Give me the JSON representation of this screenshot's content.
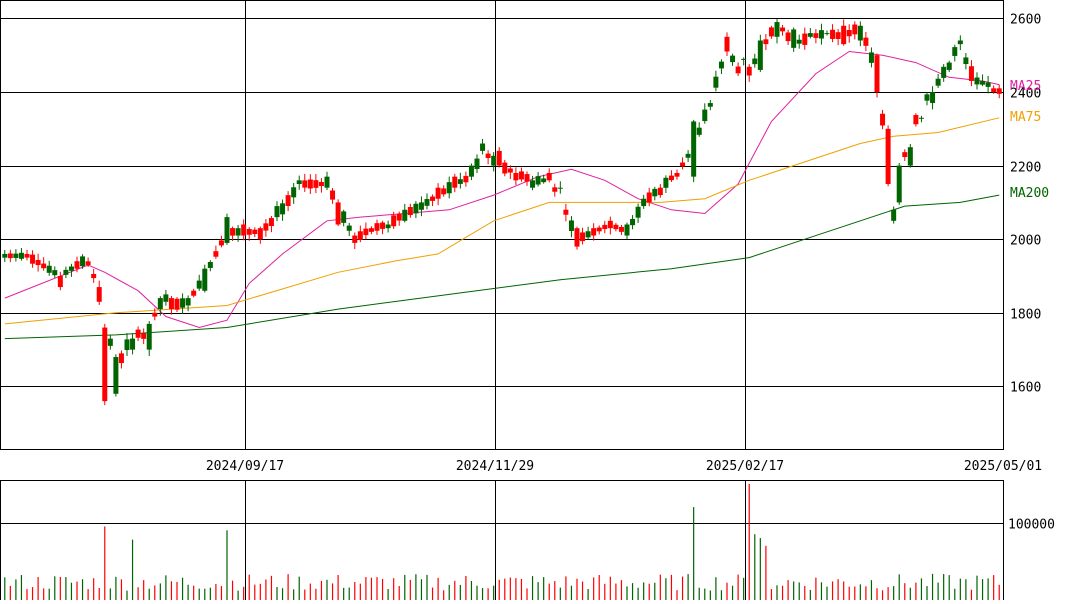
{
  "chart_data": {
    "type": "candlestick",
    "price_axis": {
      "ticks": [
        1600,
        1800,
        2000,
        2200,
        2400,
        2600
      ],
      "range": [
        1430,
        2650
      ]
    },
    "volume_axis": {
      "ticks": [
        100000
      ],
      "range": [
        0,
        155000
      ]
    },
    "date_labels": [
      "2024/09/17",
      "2024/11/29",
      "2025/02/17",
      "2025/05/01"
    ],
    "legend": [
      {
        "name": "MA25",
        "color": "#e020a0"
      },
      {
        "name": "MA75",
        "color": "#f0a000"
      },
      {
        "name": "MA200",
        "color": "#006400"
      }
    ],
    "colors": {
      "up": "#006400",
      "down": "#ff0000",
      "grid": "#000000"
    },
    "anchors": [
      [
        0,
        1950,
        1960,
        1955
      ],
      [
        4,
        1960,
        1950,
        1955
      ],
      [
        10,
        1900,
        1870,
        1900
      ],
      [
        15,
        1940,
        1930,
        1950
      ],
      [
        17,
        1870,
        1830,
        1850
      ],
      [
        18,
        1760,
        1560,
        1800
      ],
      [
        20,
        1580,
        1680,
        1640
      ],
      [
        23,
        1700,
        1730,
        1750
      ],
      [
        26,
        1700,
        1770,
        1730
      ],
      [
        28,
        1810,
        1840,
        1860
      ],
      [
        30,
        1840,
        1810,
        1820
      ],
      [
        33,
        1820,
        1840,
        1830
      ],
      [
        36,
        1860,
        1920,
        1900
      ],
      [
        40,
        1990,
        2060,
        2020
      ],
      [
        43,
        2040,
        2010,
        2020
      ],
      [
        46,
        2030,
        2000,
        2020
      ],
      [
        49,
        2060,
        2090,
        2060
      ],
      [
        53,
        2150,
        2160,
        2150
      ],
      [
        58,
        2140,
        2170,
        2150
      ],
      [
        60,
        2100,
        2040,
        2090
      ],
      [
        63,
        2010,
        1990,
        2000
      ],
      [
        66,
        2030,
        2020,
        2030
      ],
      [
        69,
        2030,
        2040,
        2040
      ],
      [
        72,
        2050,
        2080,
        2070
      ],
      [
        75,
        2080,
        2100,
        2090
      ],
      [
        78,
        2140,
        2110,
        2120
      ],
      [
        81,
        2170,
        2140,
        2150
      ],
      [
        84,
        2170,
        2200,
        2170
      ],
      [
        86,
        2240,
        2260,
        2240
      ],
      [
        89,
        2240,
        2200,
        2200
      ],
      [
        92,
        2180,
        2160,
        2180
      ],
      [
        95,
        2140,
        2160,
        2160
      ],
      [
        98,
        2180,
        2160,
        2160
      ],
      [
        100,
        2140,
        2140,
        2110
      ],
      [
        103,
        2030,
        1980,
        2000
      ],
      [
        106,
        2030,
        2010,
        2020
      ],
      [
        109,
        2050,
        2030,
        2040
      ],
      [
        112,
        2010,
        2040,
        2020
      ],
      [
        115,
        2090,
        2110,
        2100
      ],
      [
        118,
        2140,
        2120,
        2140
      ],
      [
        121,
        2180,
        2170,
        2180
      ],
      [
        124,
        2170,
        2320,
        2250
      ],
      [
        127,
        2360,
        2370,
        2380
      ],
      [
        130,
        2550,
        2510,
        2520
      ],
      [
        133,
        2490,
        2490,
        2430
      ],
      [
        136,
        2460,
        2540,
        2510
      ],
      [
        139,
        2550,
        2590,
        2590
      ],
      [
        142,
        2520,
        2570,
        2530
      ],
      [
        145,
        2550,
        2560,
        2550
      ],
      [
        148,
        2560,
        2560,
        2560
      ],
      [
        151,
        2580,
        2530,
        2550
      ],
      [
        154,
        2540,
        2580,
        2580
      ],
      [
        157,
        2500,
        2400,
        2450
      ],
      [
        159,
        2300,
        2150,
        2200
      ],
      [
        160,
        2050,
        2080,
        2080
      ],
      [
        161,
        2100,
        2200,
        2180
      ],
      [
        163,
        2200,
        2250,
        2280
      ],
      [
        165,
        2330,
        2330,
        2370
      ],
      [
        167,
        2370,
        2400,
        2400
      ],
      [
        170,
        2460,
        2480,
        2480
      ],
      [
        172,
        2530,
        2540,
        2540
      ],
      [
        174,
        2470,
        2430,
        2430
      ],
      [
        176,
        2420,
        2430,
        2430
      ],
      [
        178,
        2410,
        2400,
        2410
      ],
      [
        179,
        2410,
        2395,
        2400
      ]
    ],
    "ma25": [
      [
        0,
        1840
      ],
      [
        15,
        1930
      ],
      [
        18,
        1910
      ],
      [
        24,
        1860
      ],
      [
        29,
        1790
      ],
      [
        35,
        1760
      ],
      [
        40,
        1780
      ],
      [
        44,
        1880
      ],
      [
        50,
        1960
      ],
      [
        58,
        2050
      ],
      [
        64,
        2060
      ],
      [
        72,
        2070
      ],
      [
        80,
        2080
      ],
      [
        88,
        2120
      ],
      [
        96,
        2170
      ],
      [
        102,
        2190
      ],
      [
        108,
        2160
      ],
      [
        114,
        2110
      ],
      [
        120,
        2080
      ],
      [
        126,
        2070
      ],
      [
        132,
        2150
      ],
      [
        138,
        2320
      ],
      [
        146,
        2450
      ],
      [
        152,
        2510
      ],
      [
        158,
        2500
      ],
      [
        164,
        2480
      ],
      [
        170,
        2440
      ],
      [
        176,
        2430
      ],
      [
        179,
        2420
      ]
    ],
    "ma75": [
      [
        0,
        1770
      ],
      [
        20,
        1800
      ],
      [
        40,
        1820
      ],
      [
        60,
        1910
      ],
      [
        70,
        1940
      ],
      [
        78,
        1960
      ],
      [
        88,
        2050
      ],
      [
        98,
        2100
      ],
      [
        108,
        2100
      ],
      [
        118,
        2100
      ],
      [
        126,
        2110
      ],
      [
        134,
        2160
      ],
      [
        144,
        2210
      ],
      [
        154,
        2260
      ],
      [
        160,
        2280
      ],
      [
        168,
        2290
      ],
      [
        179,
        2330
      ]
    ],
    "ma200": [
      [
        0,
        1730
      ],
      [
        20,
        1740
      ],
      [
        40,
        1760
      ],
      [
        60,
        1810
      ],
      [
        80,
        1850
      ],
      [
        100,
        1890
      ],
      [
        120,
        1920
      ],
      [
        134,
        1950
      ],
      [
        150,
        2030
      ],
      [
        162,
        2090
      ],
      [
        172,
        2100
      ],
      [
        179,
        2120
      ]
    ],
    "volume_ticks_note": "",
    "volume_spikes": [
      [
        18,
        95000
      ],
      [
        23,
        78000
      ],
      [
        40,
        90000
      ],
      [
        124,
        120000
      ],
      [
        134,
        150000
      ],
      [
        135,
        85000
      ],
      [
        136,
        80000
      ],
      [
        137,
        70000
      ]
    ]
  }
}
